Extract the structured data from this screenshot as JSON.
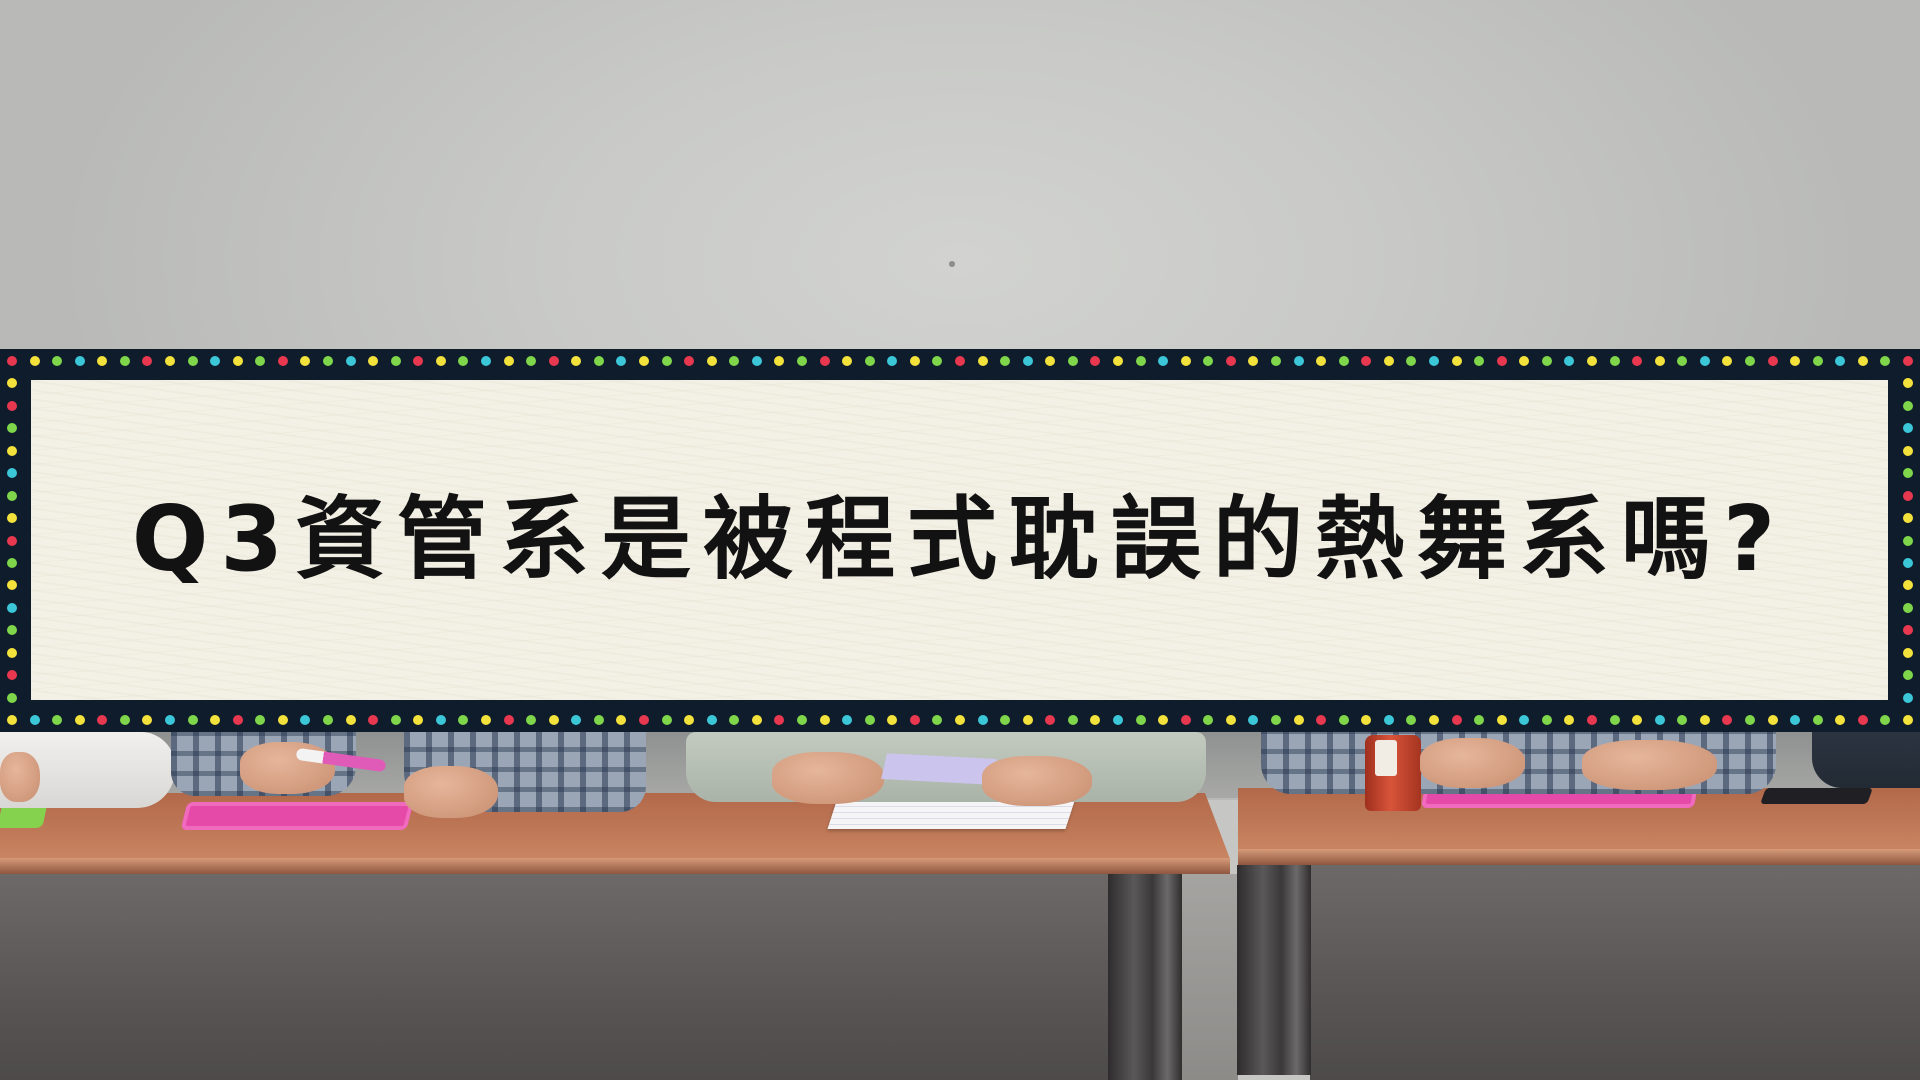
{
  "caption": {
    "text": "Q3資管系是被程式耽誤的熱舞系嗎?"
  },
  "banner": {
    "border_color": "#0f1c2b",
    "panel_color": "#f3f0e5",
    "text_color": "#121212",
    "dot_colors": [
      "#e8384f",
      "#f4e23c",
      "#7fd64a",
      "#3cc7d8",
      "#f4e23c",
      "#7fd64a"
    ]
  },
  "scene": {
    "table_color": "#c27c5a",
    "tablet_color": "#e64aa8"
  }
}
